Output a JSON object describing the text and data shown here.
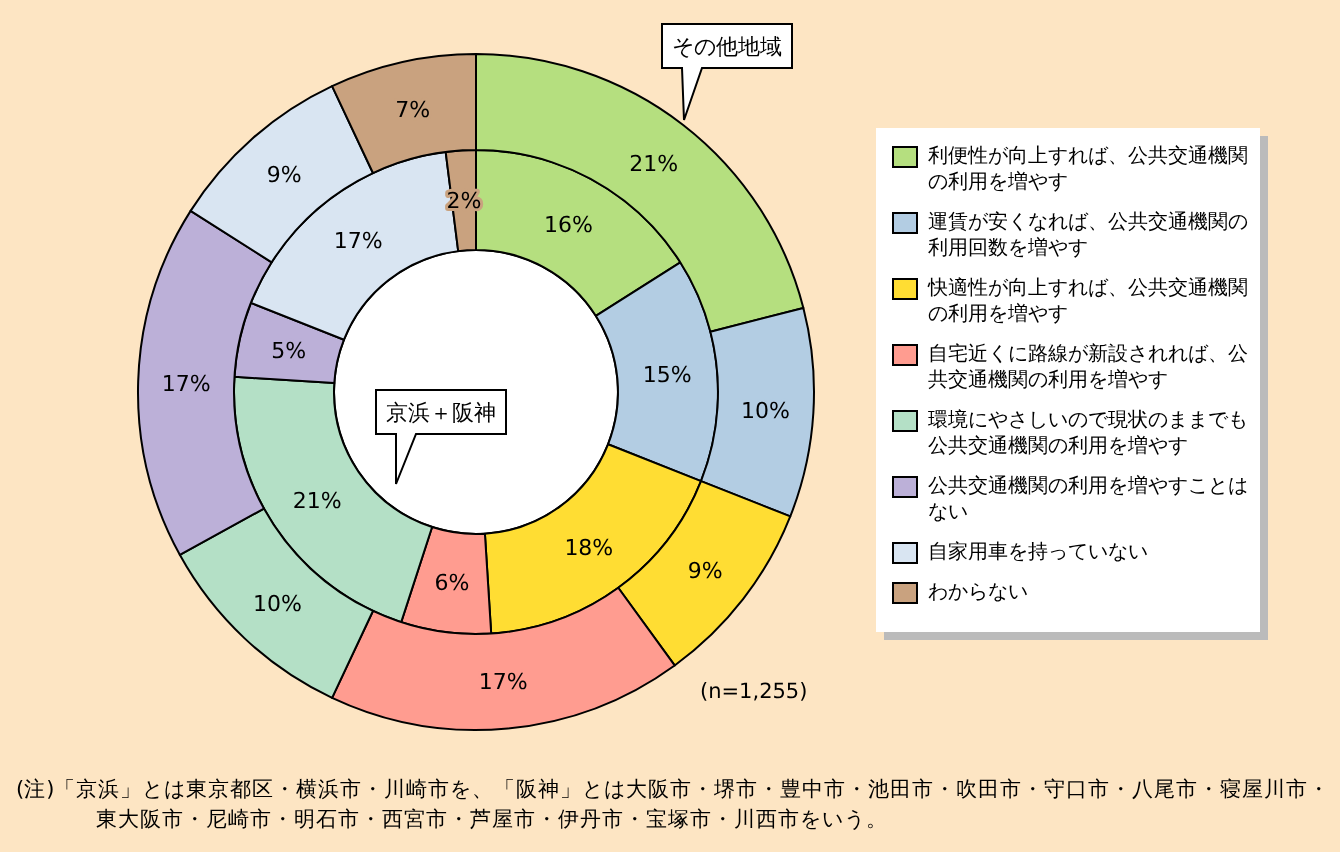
{
  "chart_data": {
    "type": "donut",
    "categories": [
      "利便性が向上すれば、公共交通機関の利用を増やす",
      "運賃が安くなれば、公共交通機関の利用回数を増やす",
      "快適性が向上すれば、公共交通機関の利用を増やす",
      "自宅近くに路線が新設されれば、公共交通機関の利用を増やす",
      "環境にやさしいので現状のままでも公共交通機関の利用を増やす",
      "公共交通機関の利用を増やすことはない",
      "自家用車を持っていない",
      "わからない"
    ],
    "colors": [
      "#b5df7f",
      "#b3cde3",
      "#ffdd33",
      "#ff9c90",
      "#b4e0c6",
      "#bcb0d8",
      "#d9e5f2",
      "#c9a27f"
    ],
    "series": [
      {
        "name": "京浜＋阪神",
        "values": [
          16,
          15,
          18,
          6,
          21,
          5,
          17,
          2
        ],
        "value_labels": [
          "16%",
          "15%",
          "18%",
          "6%",
          "21%",
          "5%",
          "17%",
          "2%"
        ]
      },
      {
        "name": "その他地域",
        "values": [
          21,
          10,
          9,
          17,
          10,
          17,
          9,
          7
        ],
        "value_labels": [
          "21%",
          "10%",
          "9%",
          "17%",
          "10%",
          "17%",
          "9%",
          "7%"
        ]
      }
    ],
    "legend": "right",
    "annotations": [
      "(n=1,255)",
      "(注)「京浜」とは東京都区・横浜市・川崎市を、「阪神」とは大阪市・堺市・豊中市・池田市・吹田市・守口市・八尾市・寝屋川市・東大阪市・尼崎市・明石市・西宮市・芦屋市・伊丹市・宝塚市・川西市をいう。"
    ]
  }
}
